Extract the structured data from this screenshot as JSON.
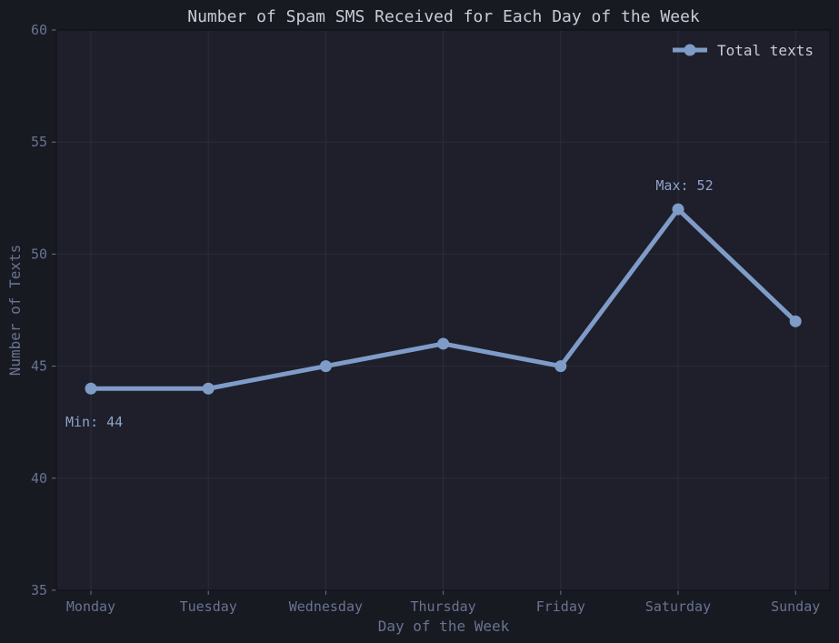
{
  "chart_data": {
    "type": "line",
    "title": "Number of Spam SMS Received for Each Day of the Week",
    "xlabel": "Day of the Week",
    "ylabel": "Number of Texts",
    "categories": [
      "Monday",
      "Tuesday",
      "Wednesday",
      "Thursday",
      "Friday",
      "Saturday",
      "Sunday"
    ],
    "series": [
      {
        "name": "Total texts",
        "values": [
          44,
          44,
          45,
          46,
          45,
          52,
          47
        ]
      }
    ],
    "ylim": [
      35,
      60
    ],
    "yticks": [
      "35",
      "40",
      "45",
      "50",
      "55",
      "60"
    ],
    "grid": true,
    "legend": "top-right",
    "annotations": [
      {
        "text": "Min: 44",
        "category": "Monday",
        "value": 44
      },
      {
        "text": "Max: 52",
        "category": "Saturday",
        "value": 52
      }
    ],
    "colors": {
      "background": "#181a22",
      "plot_background": "#1e1f2b",
      "line": "#7f9cc9",
      "grid": "#2b2d3a",
      "text": "#6a7390",
      "title": "#c8ccd6",
      "annotation": "#8ea3c8"
    }
  }
}
